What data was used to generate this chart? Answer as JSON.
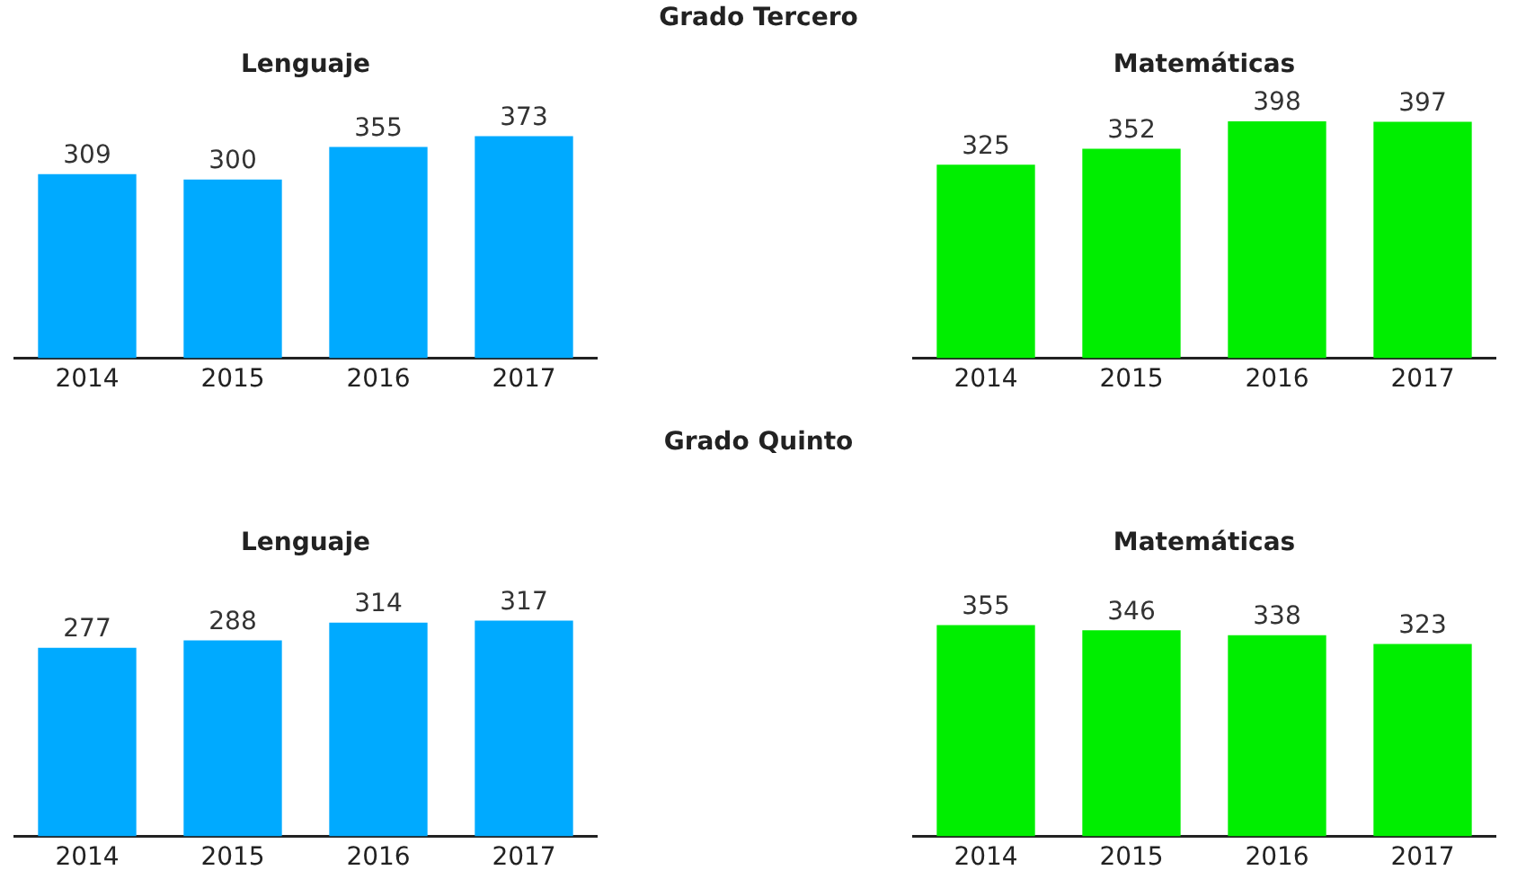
{
  "chart_data": [
    {
      "type": "bar",
      "title": "Lenguaje",
      "annotations": [
        "Grado Tercero"
      ],
      "categories": [
        "2014",
        "2015",
        "2016",
        "2017"
      ],
      "values": [
        309,
        300,
        355,
        373
      ],
      "color": "#00aaff",
      "data_labels": true,
      "grid": false,
      "legend": false
    },
    {
      "type": "bar",
      "title": "Matemáticas",
      "categories": [
        "2014",
        "2015",
        "2016",
        "2017"
      ],
      "values": [
        325,
        352,
        398,
        397
      ],
      "color": "#00ee00",
      "data_labels": true,
      "grid": false,
      "legend": false
    },
    {
      "type": "bar",
      "title": "Lenguaje",
      "annotations": [
        "Grado Quinto"
      ],
      "categories": [
        "2014",
        "2015",
        "2016",
        "2017"
      ],
      "values": [
        277,
        288,
        314,
        317
      ],
      "color": "#00aaff",
      "data_labels": true,
      "grid": false,
      "legend": false
    },
    {
      "type": "bar",
      "title": "Matemáticas",
      "categories": [
        "2014",
        "2015",
        "2016",
        "2017"
      ],
      "values": [
        355,
        346,
        338,
        323
      ],
      "color": "#00ee00",
      "data_labels": true,
      "grid": false,
      "legend": false
    }
  ]
}
